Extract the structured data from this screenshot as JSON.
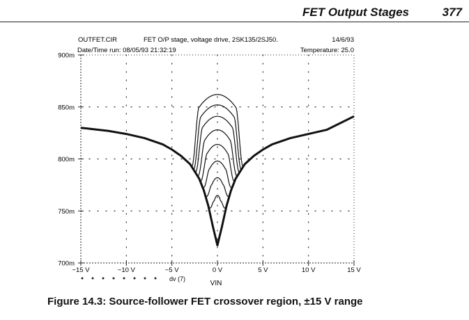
{
  "page": {
    "header_title": "FET Output Stages",
    "page_number": "377",
    "caption": "Figure 14.3: Source-follower FET crossover region, ±15 V range"
  },
  "chart_data": {
    "type": "line",
    "title": "FET O/P stage, voltage drive, 2SK135/2SJ50.",
    "file_name": "OUTFET.CIR",
    "date": "14/6/93",
    "run_time": "Date/Time run: 08/05/93  21:32:19",
    "temperature": "Temperature: 25.0",
    "xlabel": "VIN",
    "ylabel": "",
    "xlim": [
      -15,
      15
    ],
    "ylim": [
      700,
      900
    ],
    "x_ticks": [
      -15,
      -10,
      -5,
      0,
      5,
      10,
      15
    ],
    "x_tick_labels": [
      "−15 V",
      "−10 V",
      "−5 V",
      "0 V",
      "5 V",
      "10 V",
      "15 V"
    ],
    "y_ticks": [
      700,
      750,
      800,
      850,
      900
    ],
    "y_tick_labels": [
      "700m",
      "750m",
      "800m",
      "850m",
      "900m"
    ],
    "legend_label": "dv (7)",
    "legend_markers": 8,
    "grid": "dotted",
    "base_curve": [
      [
        -15,
        830
      ],
      [
        -12,
        827
      ],
      [
        -10,
        824
      ],
      [
        -8,
        820
      ],
      [
        -6,
        814
      ],
      [
        -5,
        809
      ],
      [
        -4,
        803
      ],
      [
        -3,
        795
      ],
      [
        -2,
        781
      ],
      [
        -1.5,
        770
      ],
      [
        -1,
        755
      ],
      [
        -0.5,
        735
      ],
      [
        0,
        717
      ],
      [
        0.5,
        735
      ],
      [
        1,
        755
      ],
      [
        1.5,
        770
      ],
      [
        2,
        781
      ],
      [
        3,
        795
      ],
      [
        4,
        803
      ],
      [
        5,
        809
      ],
      [
        6,
        814
      ],
      [
        8,
        820
      ],
      [
        10,
        824
      ],
      [
        12,
        828
      ],
      [
        15,
        841
      ]
    ],
    "series": [
      {
        "peak": 862,
        "shoulder": 2.0
      },
      {
        "peak": 852,
        "shoulder": 1.8
      },
      {
        "peak": 841,
        "shoulder": 1.6
      },
      {
        "peak": 828,
        "shoulder": 1.35
      },
      {
        "peak": 814,
        "shoulder": 1.1
      },
      {
        "peak": 798,
        "shoulder": 0.85
      },
      {
        "peak": 782,
        "shoulder": 0.6
      },
      {
        "peak": 765,
        "shoulder": 0.35
      }
    ]
  }
}
